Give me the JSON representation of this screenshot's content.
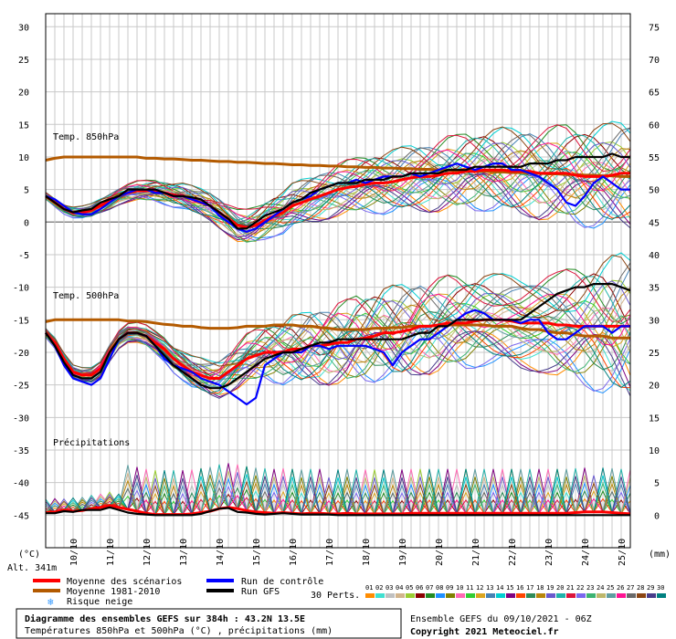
{
  "chart_data": {
    "type": "line",
    "title": "Diagramme des ensembles GEFS sur 384h : 43.2N 13.5E",
    "subtitle": "Températures 850hPa et 500hPa (°C) , précipitations (mm)",
    "source_line": "Ensemble GEFS du 09/10/2021 - 06Z",
    "copyright": "Copyright 2021 Meteociel.fr",
    "altitude": "Alt. 341m",
    "left_axis_unit": "(°C)",
    "right_axis_unit": "(mm)",
    "left_ylim": [
      -50,
      32
    ],
    "left_ticks": [
      "30",
      "25",
      "20",
      "15",
      "10",
      "5",
      "0",
      "-5",
      "-10",
      "-15",
      "-20",
      "-25",
      "-30",
      "-35",
      "-40",
      "-45"
    ],
    "right_ticks": [
      "75",
      "70",
      "65",
      "60",
      "55",
      "50",
      "45",
      "40",
      "35",
      "30",
      "25",
      "20",
      "15",
      "10",
      "5",
      "0"
    ],
    "x_labels": [
      "10/10",
      "11/10",
      "12/10",
      "13/10",
      "14/10",
      "15/10",
      "16/10",
      "17/10",
      "18/10",
      "19/10",
      "20/10",
      "21/10",
      "22/10",
      "23/10",
      "24/10",
      "25/10"
    ],
    "panel_labels": [
      "Temp. 850hPa",
      "Temp. 500hPa",
      "Précipitations"
    ],
    "x": [
      0,
      1,
      2,
      3,
      4,
      5,
      6,
      7,
      8,
      9,
      10,
      11,
      12,
      13,
      14,
      15,
      16,
      17,
      18,
      19,
      20,
      21,
      22,
      23,
      24,
      25,
      26,
      27,
      28,
      29,
      30,
      31,
      32,
      33,
      34,
      35,
      36,
      37,
      38,
      39,
      40,
      41,
      42,
      43,
      44,
      45,
      46,
      47,
      48,
      49,
      50,
      51,
      52,
      53,
      54,
      55,
      56,
      57,
      58,
      59,
      60,
      61,
      62,
      63,
      64
    ],
    "series": [
      {
        "name": "Moyenne des scénarios",
        "color": "#ff0000",
        "panel": "t850",
        "values": [
          4,
          3,
          2,
          1.5,
          1.5,
          1.8,
          2.5,
          3.2,
          4,
          4.5,
          4.8,
          4.8,
          4.8,
          4.5,
          4.2,
          4,
          3.5,
          3,
          2.5,
          1.5,
          0.5,
          -0.5,
          -0.8,
          -0.5,
          0.3,
          1,
          1.5,
          2.5,
          3,
          3.5,
          4,
          4.5,
          5,
          5.3,
          5.5,
          5.8,
          6,
          6,
          6.2,
          6.5,
          6.8,
          7,
          7,
          7.2,
          7.5,
          7.5,
          7.8,
          7.8,
          8,
          8,
          8,
          7.8,
          7.8,
          7.8,
          7.5,
          7.5,
          7.5,
          7.5,
          7.2,
          7,
          7,
          7,
          7.2,
          7.5,
          7.5
        ]
      },
      {
        "name": "Moyenne 1981-2010",
        "color": "#b35a00",
        "panel": "t850",
        "values": [
          9.5,
          9.8,
          10,
          10,
          10,
          10,
          10,
          10,
          10,
          10,
          10,
          9.8,
          9.8,
          9.7,
          9.7,
          9.6,
          9.5,
          9.5,
          9.4,
          9.3,
          9.3,
          9.2,
          9.2,
          9.1,
          9,
          9,
          8.9,
          8.8,
          8.8,
          8.7,
          8.7,
          8.6,
          8.6,
          8.5,
          8.5,
          8.4,
          8.4,
          8.3,
          8.3,
          8.2,
          8.2,
          8.1,
          8.1,
          8,
          8,
          7.9,
          7.9,
          7.8,
          7.8,
          7.7,
          7.7,
          7.6,
          7.6,
          7.5,
          7.5,
          7.4,
          7.4,
          7.3,
          7.3,
          7.2,
          7.2,
          7.1,
          7.1,
          7,
          7
        ]
      },
      {
        "name": "Run de contrôle",
        "color": "#0000ff",
        "panel": "t850",
        "values": [
          4,
          3.5,
          2.5,
          1.5,
          1.2,
          1.2,
          2,
          3,
          4,
          4.5,
          5,
          5,
          4.5,
          4.5,
          4,
          4,
          3.5,
          3,
          2.5,
          1,
          0,
          -1,
          -1.5,
          -1,
          0,
          1,
          2,
          3,
          3.5,
          4,
          5,
          5.5,
          6,
          6,
          6.5,
          6,
          6.5,
          7,
          7,
          7,
          7.5,
          7,
          7.5,
          8,
          8.5,
          9,
          8.5,
          8,
          8.5,
          9,
          9,
          8,
          8,
          7.5,
          7,
          6,
          5,
          3,
          2.5,
          4,
          6,
          7,
          6,
          5,
          5
        ]
      },
      {
        "name": "Run GFS",
        "color": "#000000",
        "panel": "t850",
        "values": [
          4,
          3,
          2,
          1.5,
          1.8,
          2,
          3,
          3.5,
          4,
          5,
          5,
          5,
          5,
          4.5,
          4,
          4,
          3.8,
          3.5,
          2.5,
          1.5,
          0.5,
          -1,
          -1,
          0,
          1,
          1.5,
          2,
          3,
          3.5,
          4.5,
          5,
          5.5,
          6,
          6,
          6,
          6.5,
          6.5,
          6.5,
          7,
          7,
          7.5,
          7.5,
          7.5,
          7.5,
          8,
          8,
          8,
          8.5,
          8.5,
          8.5,
          8.5,
          8.5,
          8.5,
          9,
          9,
          9,
          9.5,
          9.5,
          10,
          10,
          10,
          10,
          10.5,
          10,
          10
        ]
      },
      {
        "name": "Moyenne des scénarios",
        "color": "#ff0000",
        "panel": "t500",
        "values": [
          -17,
          -18.5,
          -21,
          -23,
          -23.5,
          -23.5,
          -22.5,
          -20,
          -18,
          -17,
          -17,
          -17.5,
          -18.5,
          -19.5,
          -21,
          -22,
          -23,
          -23.5,
          -24,
          -24,
          -23,
          -22,
          -21,
          -20.5,
          -20,
          -20,
          -20,
          -19.5,
          -19.5,
          -19,
          -19,
          -18.8,
          -18.5,
          -18.5,
          -18,
          -17.8,
          -17.5,
          -17,
          -17,
          -16.8,
          -16.5,
          -16,
          -16,
          -15.8,
          -15.5,
          -15.5,
          -15.5,
          -15.2,
          -15,
          -15,
          -15,
          -15.2,
          -15.5,
          -15.5,
          -15.5,
          -15.5,
          -15.8,
          -15.8,
          -16,
          -16,
          -16,
          -16,
          -16,
          -16,
          -16
        ]
      },
      {
        "name": "Moyenne 1981-2010",
        "color": "#b35a00",
        "panel": "t500",
        "values": [
          -15.3,
          -15,
          -15,
          -15,
          -15,
          -15,
          -15,
          -15,
          -15,
          -15.2,
          -15.2,
          -15.3,
          -15.5,
          -15.7,
          -15.8,
          -16,
          -16,
          -16.2,
          -16.3,
          -16.3,
          -16.3,
          -16.2,
          -16,
          -16,
          -16,
          -15.8,
          -15.8,
          -15.8,
          -16,
          -16,
          -16.2,
          -16.3,
          -16.5,
          -16.5,
          -16.5,
          -16.5,
          -16.3,
          -16.3,
          -16.2,
          -16.2,
          -16,
          -16,
          -16,
          -15.8,
          -15.8,
          -15.8,
          -15.8,
          -15.8,
          -15.8,
          -16,
          -16,
          -16,
          -16.3,
          -16.5,
          -16.5,
          -16.8,
          -17,
          -17,
          -17.3,
          -17.5,
          -17.5,
          -17.5,
          -17.8,
          -17.8,
          -17.8
        ]
      },
      {
        "name": "Run de contrôle",
        "color": "#0000ff",
        "panel": "t500",
        "values": [
          -17,
          -19,
          -22,
          -24,
          -24.5,
          -25,
          -24,
          -21,
          -18,
          -17,
          -17,
          -17.5,
          -19,
          -21,
          -22,
          -22.5,
          -23,
          -24,
          -24.5,
          -25,
          -26,
          -27,
          -28,
          -27,
          -22,
          -21,
          -20,
          -20,
          -20,
          -19,
          -19,
          -19.5,
          -19,
          -19,
          -19,
          -19,
          -19.5,
          -20,
          -22,
          -20,
          -19,
          -18,
          -18,
          -17,
          -16,
          -15,
          -14,
          -13.5,
          -14,
          -15,
          -15,
          -15,
          -15.5,
          -15,
          -15,
          -17,
          -18,
          -18,
          -17,
          -16,
          -16,
          -16,
          -17,
          -16,
          -16
        ]
      },
      {
        "name": "Run GFS",
        "color": "#000000",
        "panel": "t500",
        "values": [
          -17,
          -19,
          -21.5,
          -23.5,
          -24,
          -24,
          -23,
          -20,
          -18,
          -17,
          -17,
          -17.5,
          -19,
          -20.5,
          -22,
          -23,
          -24,
          -25,
          -25.5,
          -25.5,
          -25,
          -24,
          -23,
          -22,
          -21,
          -20.5,
          -20,
          -20,
          -19.5,
          -19,
          -18.5,
          -18.5,
          -18,
          -18,
          -18,
          -18,
          -18,
          -18,
          -18,
          -18,
          -17.5,
          -17,
          -17,
          -16,
          -16,
          -15,
          -15,
          -15,
          -15,
          -15,
          -15,
          -15,
          -15,
          -14,
          -13,
          -12,
          -11,
          -10.5,
          -10,
          -10,
          -9.5,
          -9.5,
          -9.5,
          -10,
          -10.5
        ]
      },
      {
        "name": "Moyenne des scénarios",
        "color": "#ff0000",
        "panel": "precip",
        "values": [
          0.4,
          0.5,
          0.8,
          0.6,
          0.7,
          1,
          1.2,
          1.5,
          1.2,
          0.9,
          0.6,
          0.3,
          0.1,
          0.1,
          0.1,
          0.1,
          0.2,
          0.4,
          0.6,
          1,
          1.2,
          1,
          0.7,
          0.5,
          0.4,
          0.3,
          0.4,
          0.3,
          0.2,
          0.3,
          0.3,
          0.2,
          0.2,
          0.3,
          0.2,
          0.2,
          0.2,
          0.2,
          0.2,
          0.2,
          0.3,
          0.3,
          0.3,
          0.3,
          0.3,
          0.3,
          0.3,
          0.3,
          0.3,
          0.3,
          0.3,
          0.3,
          0.3,
          0.3,
          0.3,
          0.3,
          0.3,
          0.3,
          0.4,
          0.5,
          0.5,
          0.5,
          0.4,
          0.3,
          0.2
        ]
      },
      {
        "name": "Run GFS",
        "color": "#000000",
        "panel": "precip",
        "values": [
          0.3,
          0.3,
          0.6,
          0.5,
          0.8,
          0.8,
          0.8,
          1.2,
          0.8,
          0.4,
          0.2,
          0.1,
          0,
          0,
          0,
          0,
          0,
          0.2,
          0.6,
          1,
          1.1,
          0.5,
          0.4,
          0.2,
          0.1,
          0.2,
          0.3,
          0.2,
          0.1,
          0.1,
          0.1,
          0.1,
          0,
          0,
          0,
          0,
          0,
          0,
          0,
          0,
          0,
          0,
          0,
          0,
          0,
          0,
          0,
          0,
          0,
          0,
          0,
          0,
          0,
          0,
          0,
          0,
          0,
          0,
          0,
          0,
          0,
          0,
          0,
          0,
          0
        ]
      }
    ],
    "legend": {
      "mean": "Moyenne des scénarios",
      "climate": "Moyenne 1981-2010",
      "snow": "Risque neige",
      "control": "Run de contrôle",
      "gfs": "Run GFS",
      "perts": "30 Perts.",
      "pert_labels": [
        "01",
        "02",
        "03",
        "04",
        "05",
        "06",
        "07",
        "08",
        "09",
        "10",
        "11",
        "12",
        "13",
        "14",
        "15",
        "16",
        "17",
        "18",
        "19",
        "20",
        "21",
        "22",
        "23",
        "24",
        "25",
        "26",
        "27",
        "28",
        "29",
        "30"
      ],
      "pert_colors": [
        "#ff8c00",
        "#40e0d0",
        "#c0c0c0",
        "#d2b48c",
        "#9acd32",
        "#8b0000",
        "#228b22",
        "#1e90ff",
        "#808000",
        "#ff69b4",
        "#32cd32",
        "#daa520",
        "#4682b4",
        "#00ced1",
        "#800080",
        "#ff4500",
        "#2e8b57",
        "#b8860b",
        "#6a5acd",
        "#20b2aa",
        "#dc143c",
        "#7b68ee",
        "#3cb371",
        "#bdb76b",
        "#5f9ea0",
        "#ff1493",
        "#696969",
        "#8b4513",
        "#483d8b",
        "#008080"
      ]
    },
    "grid": true
  }
}
